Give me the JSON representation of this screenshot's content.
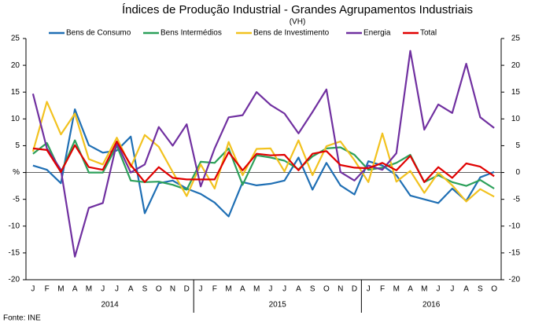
{
  "chart_data": {
    "type": "line",
    "title": "Índices de Produção Industrial - Grandes Agrupamentos Industriais",
    "subtitle": "(VH)",
    "source": "Fonte: INE",
    "categories": [
      "J",
      "F",
      "M",
      "A",
      "M",
      "J",
      "J",
      "A",
      "S",
      "O",
      "N",
      "D",
      "J",
      "F",
      "M",
      "A",
      "M",
      "J",
      "J",
      "A",
      "S",
      "O",
      "N",
      "D",
      "J",
      "F",
      "M",
      "A",
      "M",
      "J",
      "J",
      "A",
      "S",
      "O"
    ],
    "years": [
      "2014",
      "2015",
      "2016"
    ],
    "series": [
      {
        "name": "Bens de Consumo",
        "color": "#1f6fb4",
        "values": [
          1.3,
          0.5,
          -2,
          11.8,
          5.1,
          3.7,
          4.1,
          6.7,
          -7.6,
          -2,
          -1.5,
          -3,
          -4,
          -5.6,
          -8.2,
          -1.8,
          -2.4,
          -2.1,
          -1.5,
          2.8,
          -3.2,
          1.8,
          -2.4,
          -4.1,
          2.1,
          1.3,
          -0.5,
          -4.3,
          -5,
          -5.7,
          -3,
          -5.3,
          -0.9,
          0.1
        ]
      },
      {
        "name": "Bens Intermédios",
        "color": "#2ca05a",
        "values": [
          3.5,
          5.5,
          0,
          6,
          0,
          0,
          5,
          -1.5,
          -1.8,
          -1.7,
          -2.3,
          -3.2,
          2,
          1.8,
          4.5,
          -2.3,
          3.2,
          2.8,
          2.2,
          0.6,
          3,
          4.5,
          4.7,
          3.3,
          0.5,
          0.9,
          1.8,
          3.3,
          -1.8,
          -0.5,
          -1.8,
          -2.5,
          -1.4,
          -3
        ]
      },
      {
        "name": "Bens de Investimento",
        "color": "#f2c21f",
        "values": [
          3.9,
          13.2,
          7.1,
          11,
          2.5,
          1.5,
          6.5,
          1,
          7,
          4.8,
          0.1,
          -4.4,
          1.5,
          -3,
          5.7,
          -0.5,
          4.4,
          4.5,
          0.2,
          6,
          -0.5,
          4.9,
          5.8,
          2.3,
          -1.8,
          7.3,
          -1.7,
          0.3,
          -3.8,
          0,
          -2.4,
          -5.4,
          -3.1,
          -4.5
        ]
      },
      {
        "name": "Energia",
        "color": "#7030a0",
        "values": [
          14.7,
          4.5,
          0.5,
          -15.7,
          -6.6,
          -5.7,
          5.5,
          0,
          1.5,
          8.5,
          5,
          9,
          -2.6,
          4.5,
          10.3,
          10.7,
          15,
          12.6,
          11,
          7.3,
          11.3,
          15.5,
          0.1,
          -1.5,
          1.3,
          0.5,
          3.6,
          22.7,
          8,
          12.7,
          11.1,
          20.3,
          10.3,
          8.3
        ]
      },
      {
        "name": "Total",
        "color": "#e00000",
        "values": [
          4.5,
          4.2,
          0.1,
          5.1,
          1,
          0.5,
          5.8,
          1.4,
          -1.8,
          1,
          -1,
          -1.3,
          -1.3,
          -1.3,
          3.8,
          0.4,
          3.5,
          3.2,
          3.3,
          0.4,
          3.5,
          4,
          1.4,
          0.9,
          0.8,
          1.8,
          0.4,
          3.1,
          -1.8,
          1,
          -1,
          1.7,
          1.1,
          -0.7
        ]
      }
    ],
    "ylim": [
      -20,
      25
    ],
    "yticks": [
      25,
      20,
      15,
      10,
      5,
      {
        "value": 0,
        "label": "%"
      },
      -5,
      -10,
      -15,
      -20
    ],
    "y2lim": [
      -20,
      25
    ],
    "y2ticks": [
      25,
      20,
      15,
      10,
      5,
      0,
      -5,
      -10,
      -15,
      -20
    ],
    "grid": false
  }
}
